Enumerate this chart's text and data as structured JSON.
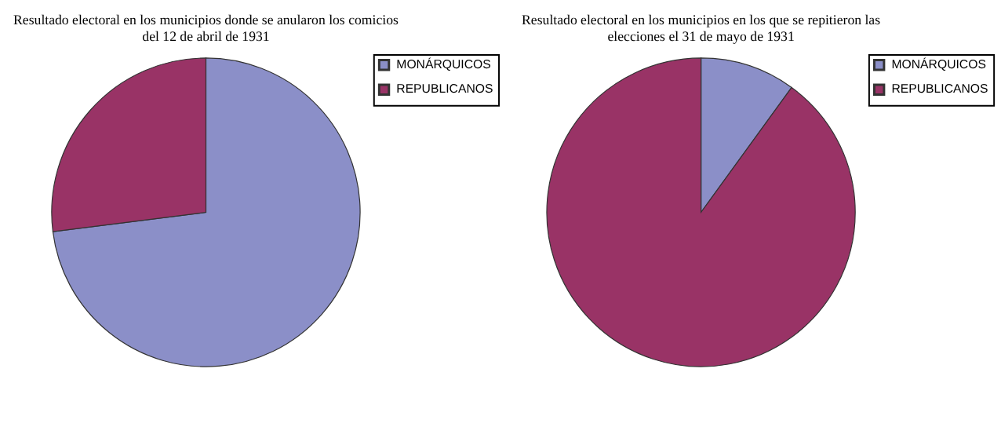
{
  "chart_data": [
    {
      "type": "pie",
      "title": "Resultado electoral en los municipios donde se anularon los comicios del 12 de abril de 1931",
      "categories": [
        "MONÁRQUICOS",
        "REPUBLICANOS"
      ],
      "values": [
        73,
        27
      ],
      "colors": [
        "#8b8fc8",
        "#993366"
      ],
      "legend": "right"
    },
    {
      "type": "pie",
      "title": "Resultado electoral en los municipios en los que se repitieron las elecciones el 31 de mayo de 1931",
      "categories": [
        "MONÁRQUICOS",
        "REPUBLICANOS"
      ],
      "values": [
        10,
        90
      ],
      "colors": [
        "#8b8fc8",
        "#993366"
      ],
      "legend": "right"
    }
  ]
}
